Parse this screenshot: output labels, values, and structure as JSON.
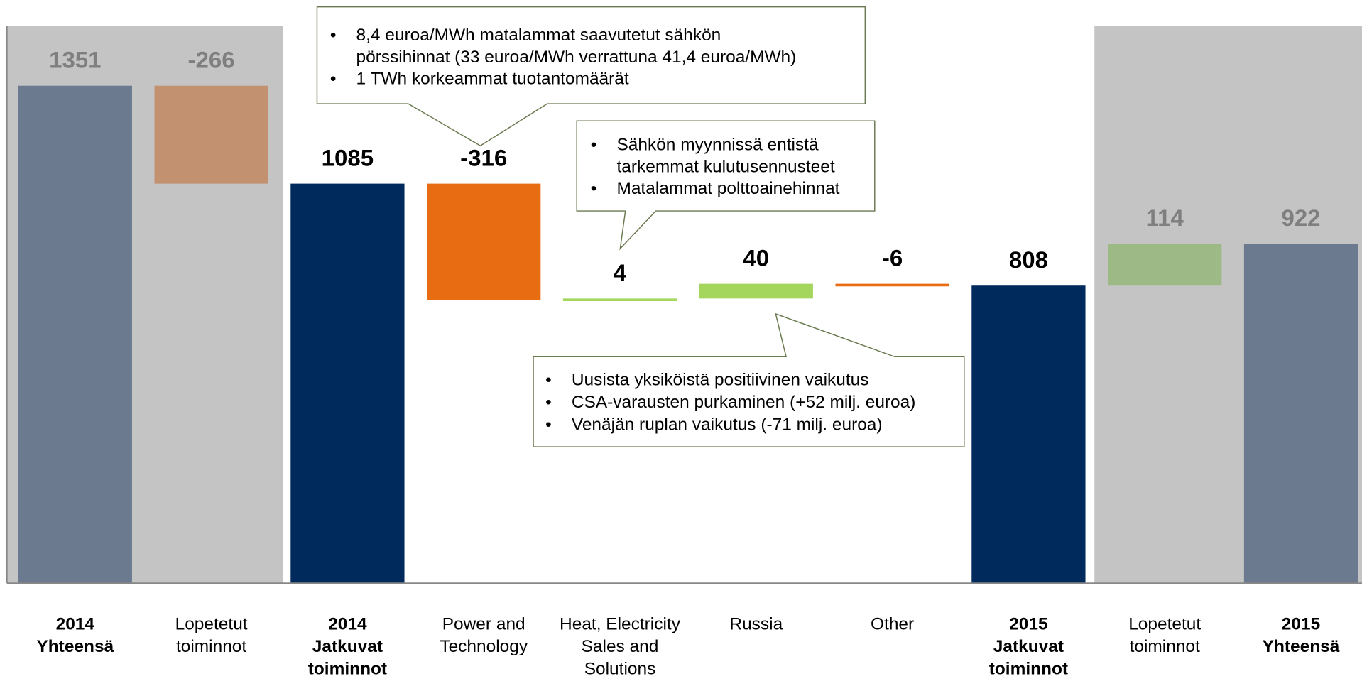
{
  "chart_data": {
    "type": "waterfall",
    "categories": [
      [
        "2014",
        "Yhteensä"
      ],
      [
        "Lopetetut",
        "toiminnot"
      ],
      [
        "2014",
        "Jatkuvat",
        "toiminnot"
      ],
      [
        "Power and",
        "Technology"
      ],
      [
        "Heat, Electricity",
        "Sales and",
        "Solutions"
      ],
      [
        "Russia"
      ],
      [
        "Other"
      ],
      [
        "2015",
        "Jatkuvat",
        "toiminnot"
      ],
      [
        "Lopetetut",
        "toiminnot"
      ],
      [
        "2015",
        "Yhteensä"
      ]
    ],
    "values": [
      1351,
      -266,
      1085,
      -316,
      4,
      40,
      -6,
      808,
      114,
      922
    ],
    "kinds": [
      "total",
      "delta",
      "total",
      "delta",
      "delta",
      "delta",
      "delta",
      "total",
      "delta",
      "total"
    ],
    "colors": [
      "#6b7a8f",
      "#c2916f",
      "#002a5c",
      "#e86c11",
      "#a4d65e",
      "#a4d65e",
      "#e86c11",
      "#002a5c",
      "#9dba86",
      "#6b7a8f"
    ],
    "label_colors": [
      "#7f7f7f",
      "#7f7f7f",
      "#000000",
      "#000000",
      "#000000",
      "#000000",
      "#000000",
      "#000000",
      "#7f7f7f",
      "#7f7f7f"
    ],
    "ylim": [
      0,
      1500
    ],
    "callouts": [
      {
        "lines": [
          [
            "8,4 euroa/MWh matalammat saavutetut sähkön",
            "pörssihinnat (33 euroa/MWh verrattuna 41,4 euroa/MWh)"
          ],
          [
            "1 TWh korkeammat tuotantomäärät"
          ]
        ]
      },
      {
        "lines": [
          [
            "Sähkön myynnissä entistä",
            "tarkemmat kulutusennusteet"
          ],
          [
            "Matalammat polttoainehinnat"
          ]
        ]
      },
      {
        "lines": [
          [
            "Uusista yksiköistä positiivinen vaikutus"
          ],
          [
            "CSA-varausten purkaminen (+52 milj. euroa)"
          ],
          [
            "Venäjän ruplan vaikutus (-71 milj. euroa)"
          ]
        ]
      }
    ]
  }
}
